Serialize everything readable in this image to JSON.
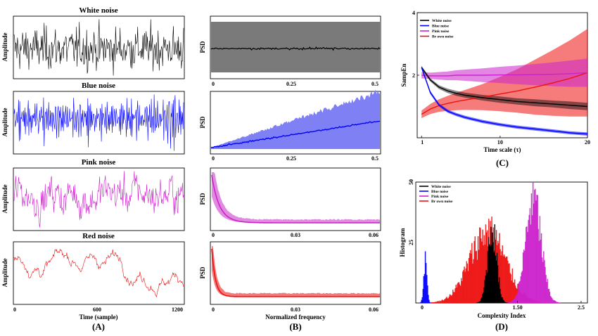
{
  "colors": {
    "white": "#000000",
    "blue": "#0000ff",
    "pink": "#cc22cc",
    "red": "#ee1111",
    "psd_white_band": "#7a7a7a",
    "psd_blue_band": "#8080f5",
    "psd_pink_band": "#e08ae0",
    "psd_red_band": "#f47a7a"
  },
  "captions": [
    "(A)",
    "(B)",
    "(C)",
    "(D)"
  ],
  "panel_a": {
    "xlabel": "Time (sample)",
    "ylabel": "Amplitude",
    "xticks": [
      "0",
      "600",
      "1200"
    ],
    "x_range": [
      0,
      1300
    ],
    "signals": [
      {
        "title": "White noise",
        "color_key": "white"
      },
      {
        "title": "Blue noise",
        "color_key": "blue"
      },
      {
        "title": "Pink noise",
        "color_key": "pink"
      },
      {
        "title": "Red noise",
        "color_key": "red"
      }
    ]
  },
  "panel_b": {
    "xlabel": "Normalized frequency",
    "ylabel": "PSD",
    "rows": [
      {
        "xticks": [
          "0",
          "0.25",
          "0.5"
        ],
        "x_range": [
          0,
          0.53
        ]
      },
      {
        "xticks": [
          "0",
          "0.25",
          "0.5"
        ],
        "x_range": [
          0,
          0.53
        ]
      },
      {
        "xticks": [
          "0",
          "0.03",
          "0.06"
        ],
        "x_range": [
          0,
          0.063
        ]
      },
      {
        "xticks": [
          "0",
          "0.03",
          "0.06"
        ],
        "x_range": [
          0,
          0.063
        ]
      }
    ]
  },
  "chart_data": [
    {
      "type": "line",
      "panel": "C",
      "xlabel": "Time scale (τ)",
      "ylabel": "SampEn",
      "xticks": [
        1,
        10,
        20
      ],
      "yticks": [
        2,
        4
      ],
      "xlim": [
        0.5,
        20
      ],
      "ylim": [
        0,
        4
      ],
      "legend": "top-left",
      "x": [
        1,
        2,
        3,
        4,
        5,
        6,
        8,
        10,
        12,
        14,
        16,
        18,
        20
      ],
      "series": [
        {
          "name": "White noise",
          "color_key": "white",
          "values": [
            2.25,
            1.85,
            1.62,
            1.5,
            1.42,
            1.36,
            1.28,
            1.22,
            1.16,
            1.12,
            1.08,
            1.04,
            1.0
          ],
          "band": [
            0.05,
            0.05,
            0.06,
            0.07,
            0.08,
            0.08,
            0.09,
            0.1,
            0.1,
            0.11,
            0.11,
            0.12,
            0.12
          ]
        },
        {
          "name": "Blue noise",
          "color_key": "blue",
          "values": [
            2.25,
            1.45,
            1.05,
            0.85,
            0.74,
            0.65,
            0.52,
            0.42,
            0.34,
            0.28,
            0.22,
            0.16,
            0.12
          ],
          "band": [
            0.05,
            0.05,
            0.05,
            0.05,
            0.05,
            0.05,
            0.05,
            0.05,
            0.05,
            0.05,
            0.05,
            0.05,
            0.05
          ]
        },
        {
          "name": "Pink noise",
          "color_key": "pink",
          "values": [
            2.0,
            1.98,
            1.98,
            1.98,
            2.0,
            2.0,
            2.0,
            2.01,
            2.01,
            2.02,
            2.03,
            2.05,
            2.08
          ],
          "band": [
            0.1,
            0.1,
            0.12,
            0.14,
            0.16,
            0.18,
            0.22,
            0.26,
            0.3,
            0.34,
            0.38,
            0.42,
            0.45
          ]
        },
        {
          "name": "Br own noise",
          "color_key": "red",
          "values": [
            0.75,
            0.92,
            1.03,
            1.1,
            1.16,
            1.21,
            1.3,
            1.4,
            1.5,
            1.62,
            1.75,
            1.9,
            2.08
          ],
          "band": [
            0.12,
            0.16,
            0.2,
            0.24,
            0.28,
            0.32,
            0.42,
            0.55,
            0.7,
            0.88,
            1.05,
            1.22,
            1.4
          ]
        }
      ]
    },
    {
      "type": "histogram",
      "panel": "D",
      "xlabel": "Complexity Index",
      "ylabel": "Histogram",
      "xticks": [
        "0",
        "1.50",
        "2.5"
      ],
      "yticks": [
        "25",
        "50"
      ],
      "xlim": [
        -0.1,
        2.6
      ],
      "ylim": [
        0,
        50
      ],
      "legend": "top-left",
      "series": [
        {
          "name": "White noise",
          "color_key": "white",
          "center": 1.1,
          "spread": 0.07,
          "peak": 32
        },
        {
          "name": "Blue noise",
          "color_key": "blue",
          "center": 0.05,
          "spread": 0.025,
          "peak": 19
        },
        {
          "name": "Pink noise",
          "color_key": "pink",
          "center": 1.75,
          "spread": 0.12,
          "peak": 44
        },
        {
          "name": "Br own noise",
          "color_key": "red",
          "center": 1.03,
          "spread": 0.28,
          "peak": 30
        }
      ]
    }
  ]
}
